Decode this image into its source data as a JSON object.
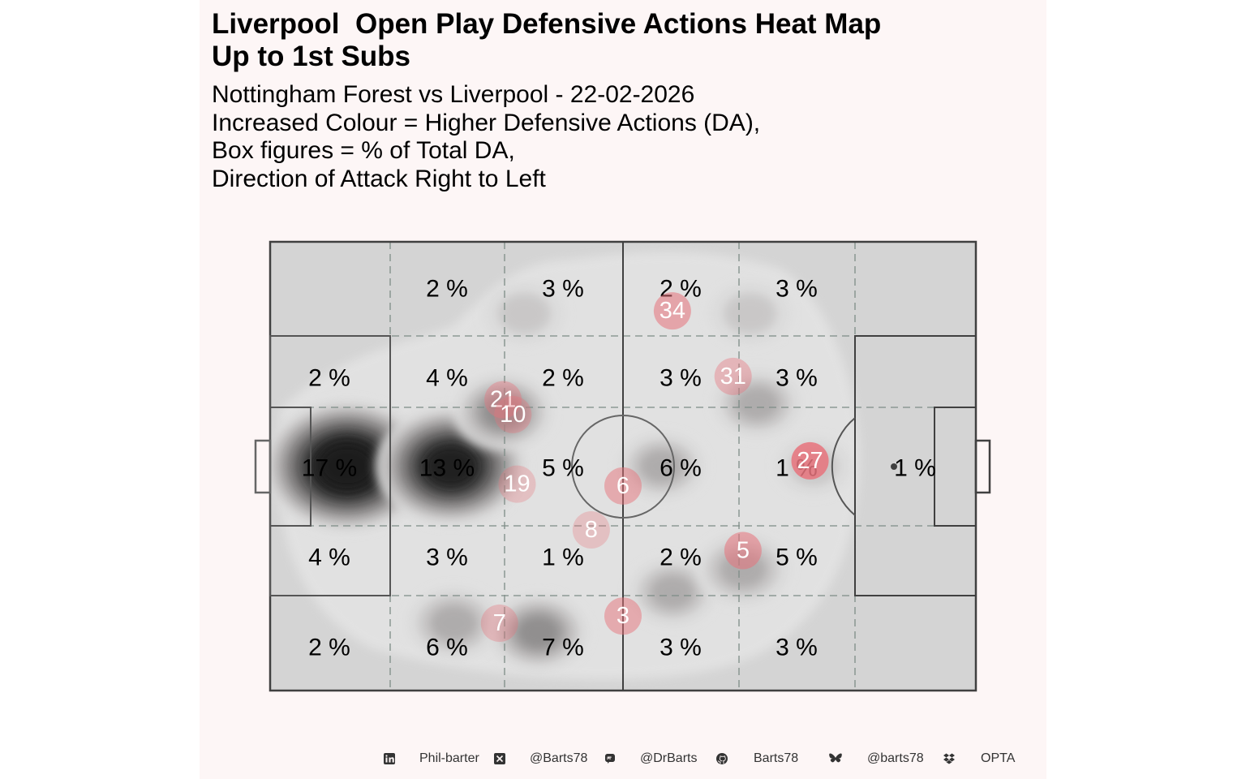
{
  "header": {
    "title": "Liverpool  Open Play Defensive Actions Heat Map\nUp to 1st Subs",
    "subtitle_lines": [
      "Nottingham Forest vs Liverpool - 22-02-2026",
      "Increased Colour = Higher Defensive Actions (DA),",
      "Box figures = % of Total DA,",
      "Direction of Attack Right to Left"
    ]
  },
  "chart_data": {
    "type": "heatmap",
    "grid_rows": 5,
    "grid_cols": 6,
    "zone_percentages": [
      [
        "",
        "2 %",
        "3 %",
        "2 %",
        "3 %",
        ""
      ],
      [
        "2 %",
        "4 %",
        "2 %",
        "3 %",
        "3 %",
        ""
      ],
      [
        "17 %",
        "13 %",
        "5 %",
        "6 %",
        "1 %",
        "1 %"
      ],
      [
        "4 %",
        "3 %",
        "1 %",
        "2 %",
        "5 %",
        ""
      ],
      [
        "2 %",
        "6 %",
        "7 %",
        "3 %",
        "3 %",
        ""
      ]
    ],
    "players": [
      {
        "number": "34",
        "x": 57.0,
        "y": 84.6,
        "alpha": 0.55
      },
      {
        "number": "21",
        "x": 33.0,
        "y": 64.8,
        "alpha": 0.4
      },
      {
        "number": "10",
        "x": 34.4,
        "y": 61.5,
        "alpha": 0.35
      },
      {
        "number": "31",
        "x": 65.6,
        "y": 70.0,
        "alpha": 0.4
      },
      {
        "number": "27",
        "x": 76.5,
        "y": 51.2,
        "alpha": 0.85
      },
      {
        "number": "19",
        "x": 35.0,
        "y": 46.0,
        "alpha": 0.3
      },
      {
        "number": "6",
        "x": 50.0,
        "y": 45.6,
        "alpha": 0.5
      },
      {
        "number": "8",
        "x": 45.5,
        "y": 35.8,
        "alpha": 0.3
      },
      {
        "number": "5",
        "x": 67.0,
        "y": 31.2,
        "alpha": 0.55
      },
      {
        "number": "3",
        "x": 50.0,
        "y": 16.6,
        "alpha": 0.5
      },
      {
        "number": "7",
        "x": 32.5,
        "y": 15.0,
        "alpha": 0.35
      }
    ],
    "density_hotspots": [
      {
        "x": 10.9,
        "y": 50.0,
        "weight": 1.0
      },
      {
        "x": 25.6,
        "y": 50.0,
        "weight": 0.85
      },
      {
        "x": 33.0,
        "y": 62.0,
        "weight": 0.4
      },
      {
        "x": 36.0,
        "y": 84.0,
        "weight": 0.25
      },
      {
        "x": 26.0,
        "y": 15.0,
        "weight": 0.35
      },
      {
        "x": 38.0,
        "y": 13.0,
        "weight": 0.4
      },
      {
        "x": 57.0,
        "y": 22.0,
        "weight": 0.3
      },
      {
        "x": 67.0,
        "y": 27.0,
        "weight": 0.35
      },
      {
        "x": 55.5,
        "y": 50.0,
        "weight": 0.3
      },
      {
        "x": 68.0,
        "y": 84.0,
        "weight": 0.25
      },
      {
        "x": 69.0,
        "y": 64.0,
        "weight": 0.3
      },
      {
        "x": 77.0,
        "y": 50.0,
        "weight": 0.2
      }
    ],
    "colors": {
      "pitch": "#d4d4d4",
      "lines": "#404040",
      "grid_dash": "#7d8c86",
      "player_marker": "#e8737c",
      "panel_bg": "#fdf6f6"
    }
  },
  "footer": {
    "credits": [
      {
        "icon": "linkedin-icon",
        "label": "Phil-barter"
      },
      {
        "icon": "x-twitter-icon",
        "label": "@Barts78"
      },
      {
        "icon": "mastodon-icon",
        "label": "@DrBarts"
      },
      {
        "icon": "github-icon",
        "label": "Barts78"
      },
      {
        "icon": "bluesky-icon",
        "label": "@barts78"
      },
      {
        "icon": "dropbox-icon",
        "label": "OPTA"
      }
    ]
  }
}
